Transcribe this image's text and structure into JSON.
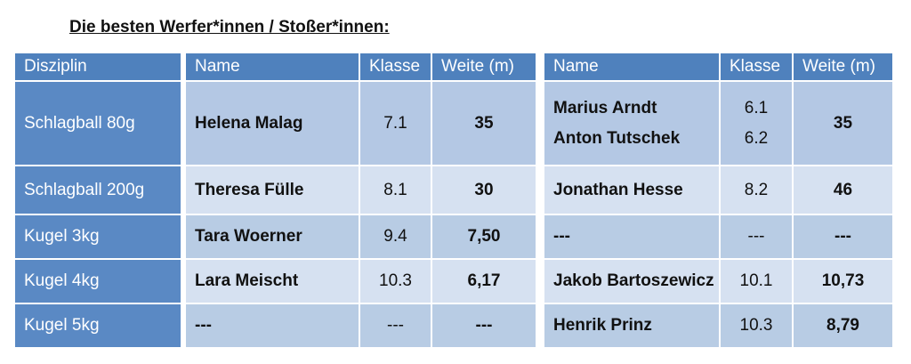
{
  "title": "Die besten Werfer*innen / Stoßer*innen:",
  "table": {
    "header": [
      "Disziplin",
      "Name",
      "Klasse",
      "Weite (m)",
      "Name",
      "Klasse",
      "Weite (m)"
    ],
    "rows": [
      [
        "Schlagball 80g",
        "Helena Malag",
        "7.1",
        "35",
        [
          "Marius Arndt",
          "Anton Tutschek"
        ],
        [
          "6.1",
          "6.2"
        ],
        "35"
      ],
      [
        "Schlagball 200g",
        "Theresa Fülle",
        "8.1",
        "30",
        "Jonathan Hesse",
        "8.2",
        "46"
      ],
      [
        "Kugel 3kg",
        "Tara Woerner",
        "9.4",
        "7,50",
        "---",
        "---",
        "---"
      ],
      [
        "Kugel 4kg",
        "Lara Meischt",
        "10.3",
        "6,17",
        "Jakob Bartoszewicz",
        "10.1",
        "10,73"
      ],
      [
        "Kugel 5kg",
        "---",
        "---",
        "---",
        "Henrik Prinz",
        "10.3",
        "8,79"
      ]
    ]
  }
}
